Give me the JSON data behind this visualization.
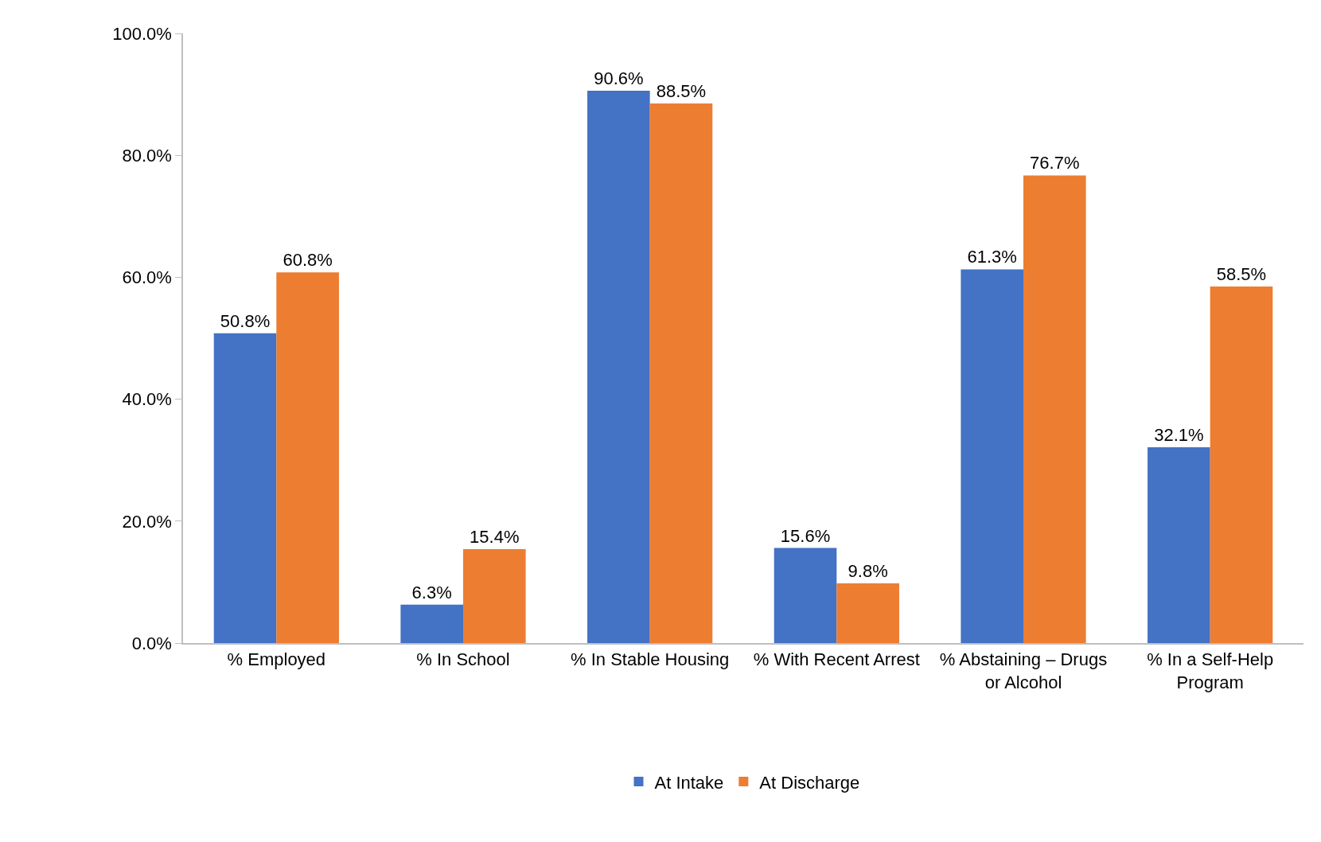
{
  "chart_data": {
    "type": "bar",
    "categories": [
      "% Employed",
      "% In School",
      "% In Stable Housing",
      "% With Recent Arrest",
      "% Abstaining – Drugs or Alcohol",
      "% In a Self-Help Program"
    ],
    "series": [
      {
        "name": "At Intake",
        "color": "#4472c4",
        "values": [
          50.8,
          6.3,
          90.6,
          15.6,
          61.3,
          32.1
        ],
        "value_labels": [
          "50.8%",
          "6.3%",
          "90.6%",
          "15.6%",
          "61.3%",
          "32.1%"
        ]
      },
      {
        "name": "At Discharge",
        "color": "#ed7d31",
        "values": [
          60.8,
          15.4,
          88.5,
          9.8,
          76.7,
          58.5
        ],
        "value_labels": [
          "60.8%",
          "15.4%",
          "88.5%",
          "9.8%",
          "76.7%",
          "58.5%"
        ]
      }
    ],
    "ylim": [
      0,
      100
    ],
    "yticks": [
      {
        "value": 0,
        "label": "0.0%"
      },
      {
        "value": 20,
        "label": "20.0%"
      },
      {
        "value": 40,
        "label": "40.0%"
      },
      {
        "value": 60,
        "label": "60.0%"
      },
      {
        "value": 80,
        "label": "80.0%"
      },
      {
        "value": 100,
        "label": "100.0%"
      }
    ],
    "grid": false,
    "legend": "bottom"
  }
}
